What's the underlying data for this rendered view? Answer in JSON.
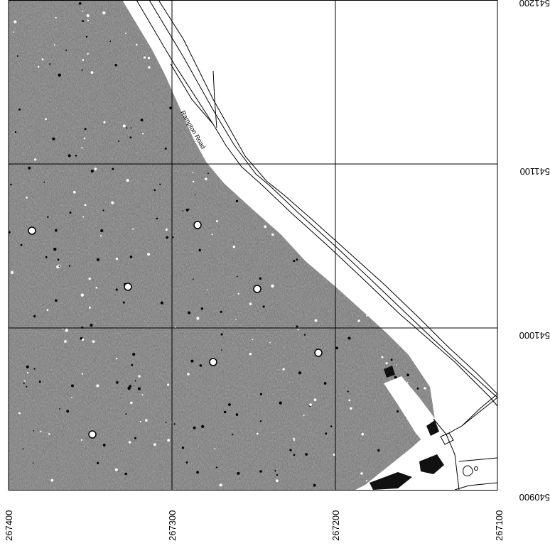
{
  "map": {
    "easting_labels": [
      "267400",
      "267300",
      "267200",
      "267100"
    ],
    "northing_labels": [
      "541200",
      "541100",
      "541000",
      "540900"
    ],
    "road_name": "Rampton Road",
    "colors": {
      "survey_fill": "#7a7a7a",
      "background": "#ffffff",
      "linework": "#000000"
    }
  }
}
